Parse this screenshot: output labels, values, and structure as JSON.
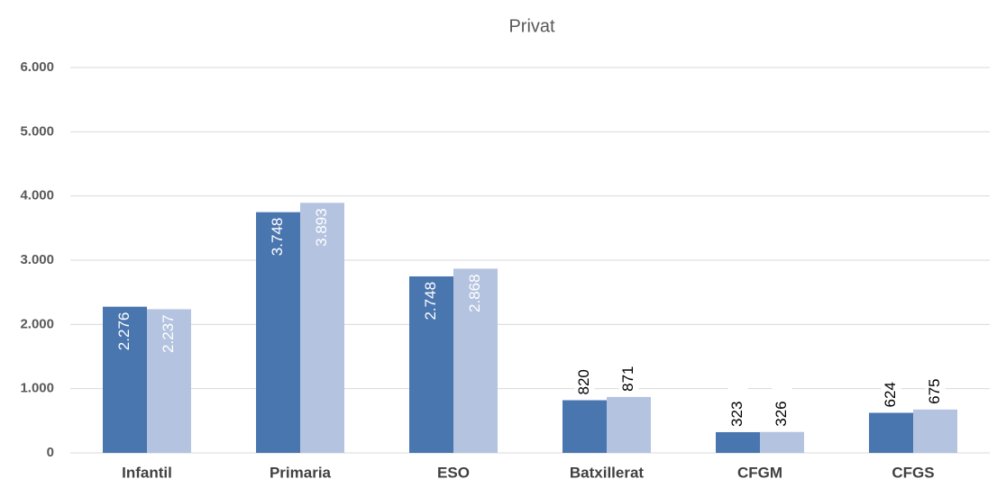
{
  "chart_data": {
    "type": "bar",
    "title": "Privat",
    "categories": [
      "Infantil",
      "Primaria",
      "ESO",
      "Batxillerat",
      "CFGM",
      "CFGS"
    ],
    "series": [
      {
        "color": "#4a76b0",
        "values": [
          2276,
          3748,
          2748,
          820,
          323,
          624
        ],
        "value_labels": [
          "2.276",
          "3.748",
          "2.748",
          "820",
          "323",
          "624"
        ]
      },
      {
        "color": "#b4c3df",
        "values": [
          2237,
          3893,
          2868,
          871,
          326,
          675
        ],
        "value_labels": [
          "2.237",
          "3.893",
          "2.868",
          "871",
          "326",
          "675"
        ]
      }
    ],
    "ylim": [
      0,
      6000
    ],
    "yticks": [
      0,
      {
        "value": 1000,
        "label": "1.000"
      },
      {
        "value": 2000,
        "label": "2.000"
      },
      {
        "value": 3000,
        "label": "3.000"
      },
      {
        "value": 4000,
        "label": "4.000"
      },
      {
        "value": 5000,
        "label": "5.000"
      },
      {
        "value": 6000,
        "label": "6.000"
      }
    ],
    "grid": true
  }
}
